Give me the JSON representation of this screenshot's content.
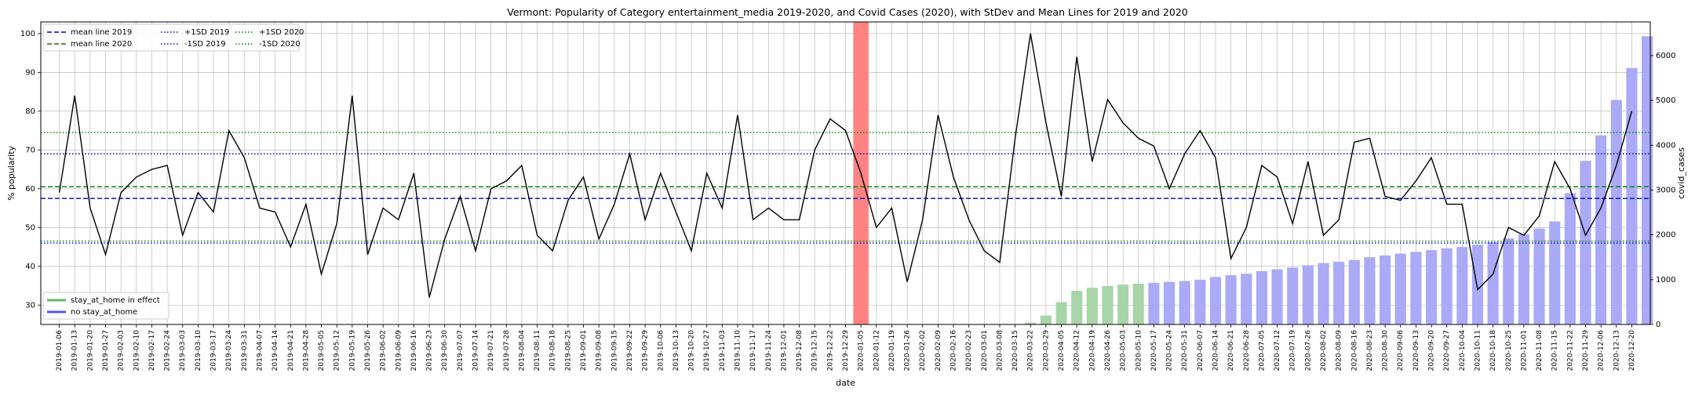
{
  "chart_data": {
    "type": "line",
    "title": "Vermont: Popularity of Category entertainment_media 2019-2020, and Covid Cases (2020), with StDev and Mean Lines for 2019 and 2020",
    "xlabel": "date",
    "ylabel": "% popularity",
    "y2label": "covid_cases",
    "ylim": [
      25,
      103
    ],
    "y2lim": [
      0,
      6750
    ],
    "yticks": [
      30,
      40,
      50,
      60,
      70,
      80,
      90,
      100
    ],
    "y2ticks": [
      0,
      1000,
      2000,
      3000,
      4000,
      5000,
      6000
    ],
    "grid": true,
    "x_dates": [
      "2019-01-06",
      "2019-01-13",
      "2019-01-20",
      "2019-01-27",
      "2019-02-03",
      "2019-02-10",
      "2019-02-17",
      "2019-02-24",
      "2019-03-03",
      "2019-03-10",
      "2019-03-17",
      "2019-03-24",
      "2019-03-31",
      "2019-04-07",
      "2019-04-14",
      "2019-04-21",
      "2019-04-28",
      "2019-05-05",
      "2019-05-12",
      "2019-05-19",
      "2019-05-26",
      "2019-06-02",
      "2019-06-09",
      "2019-06-16",
      "2019-06-23",
      "2019-06-30",
      "2019-07-07",
      "2019-07-14",
      "2019-07-21",
      "2019-07-28",
      "2019-08-04",
      "2019-08-11",
      "2019-08-18",
      "2019-08-25",
      "2019-09-01",
      "2019-09-08",
      "2019-09-15",
      "2019-09-22",
      "2019-09-29",
      "2019-10-06",
      "2019-10-13",
      "2019-10-20",
      "2019-10-27",
      "2019-11-03",
      "2019-11-10",
      "2019-11-17",
      "2019-11-24",
      "2019-12-01",
      "2019-12-08",
      "2019-12-15",
      "2019-12-22",
      "2019-12-29",
      "2020-01-05",
      "2020-01-12",
      "2020-01-19",
      "2020-01-26",
      "2020-02-02",
      "2020-02-09",
      "2020-02-16",
      "2020-02-23",
      "2020-03-01",
      "2020-03-08",
      "2020-03-15",
      "2020-03-22",
      "2020-03-29",
      "2020-04-05",
      "2020-04-12",
      "2020-04-19",
      "2020-04-26",
      "2020-05-03",
      "2020-05-10",
      "2020-05-17",
      "2020-05-24",
      "2020-05-31",
      "2020-06-07",
      "2020-06-14",
      "2020-06-21",
      "2020-06-28",
      "2020-07-05",
      "2020-07-12",
      "2020-07-19",
      "2020-07-26",
      "2020-08-02",
      "2020-08-09",
      "2020-08-16",
      "2020-08-23",
      "2020-08-30",
      "2020-09-06",
      "2020-09-13",
      "2020-09-20",
      "2020-09-27",
      "2020-10-04",
      "2020-10-11",
      "2020-10-18",
      "2020-10-25",
      "2020-11-01",
      "2020-11-08",
      "2020-11-15",
      "2020-11-22",
      "2020-11-29",
      "2020-12-06",
      "2020-12-13",
      "2020-12-20"
    ],
    "popularity": [
      59,
      84,
      55,
      43,
      59,
      63,
      65,
      66,
      48,
      59,
      54,
      75,
      68,
      55,
      54,
      45,
      56,
      38,
      51,
      84,
      43,
      55,
      52,
      64,
      32,
      47,
      58,
      44,
      60,
      62,
      66,
      48,
      44,
      57,
      63,
      47,
      56,
      69,
      52,
      64,
      54,
      44,
      64,
      55,
      79,
      52,
      55,
      52,
      52,
      70,
      78,
      75,
      64,
      50,
      55,
      36,
      52,
      79,
      63,
      52,
      44,
      41,
      73,
      100,
      77,
      58,
      94,
      67,
      83,
      77,
      73,
      71,
      60,
      69,
      75,
      68,
      42,
      50,
      66,
      63,
      51,
      67,
      48,
      52,
      72,
      73,
      58,
      57,
      62,
      68,
      56,
      56,
      34,
      38,
      50,
      48,
      53,
      67,
      60,
      48,
      55,
      66,
      80
    ],
    "covid_cases": [
      null,
      null,
      null,
      null,
      null,
      null,
      null,
      null,
      null,
      null,
      null,
      null,
      null,
      null,
      null,
      null,
      null,
      null,
      null,
      null,
      null,
      null,
      null,
      null,
      null,
      null,
      null,
      null,
      null,
      null,
      null,
      null,
      null,
      null,
      null,
      null,
      null,
      null,
      null,
      null,
      null,
      null,
      null,
      null,
      null,
      null,
      null,
      null,
      null,
      null,
      null,
      null,
      null,
      null,
      null,
      null,
      null,
      null,
      null,
      null,
      null,
      null,
      0,
      40,
      200,
      500,
      750,
      820,
      860,
      890,
      910,
      930,
      950,
      970,
      1000,
      1060,
      1100,
      1130,
      1190,
      1230,
      1270,
      1320,
      1370,
      1400,
      1440,
      1500,
      1540,
      1580,
      1620,
      1660,
      1700,
      1730,
      1780,
      1840,
      1920,
      2010,
      2140,
      2300,
      2930,
      3650,
      4220,
      5010,
      5720,
      6430
    ],
    "stay_at_home_in_effect": [
      "2020-03-22",
      "2020-03-29",
      "2020-04-05",
      "2020-04-12",
      "2020-04-19",
      "2020-04-26",
      "2020-05-03",
      "2020-05-10"
    ],
    "highlight_date": "2020-01-05",
    "reference_lines": [
      {
        "name": "mean line 2019",
        "value": 57.5,
        "color": "#0000cc",
        "style": "dashed"
      },
      {
        "name": "mean line 2020",
        "value": 60.5,
        "color": "#008000",
        "style": "dashed"
      },
      {
        "name": "+1SD 2019",
        "value": 69.0,
        "color": "#0000cc",
        "style": "dotted"
      },
      {
        "name": "-1SD 2019",
        "value": 46.0,
        "color": "#0000cc",
        "style": "dotted"
      },
      {
        "name": "+1SD 2020",
        "value": 74.5,
        "color": "#008000",
        "style": "dotted"
      },
      {
        "name": "-1SD 2020",
        "value": 46.5,
        "color": "#008000",
        "style": "dotted"
      }
    ],
    "bar_legend": [
      {
        "name": "stay_at_home in effect",
        "color": "#6ab36a"
      },
      {
        "name": "no stay_at_home",
        "color": "#5555ee"
      }
    ],
    "colors": {
      "line": "#000000",
      "bar_no_stay": "#aaaaf7",
      "bar_stay": "#a8d5a8",
      "highlight": "#ff7c7c",
      "grid": "#b0b0b0"
    }
  }
}
